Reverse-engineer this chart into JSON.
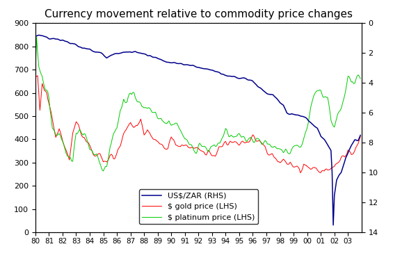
{
  "title": "Currency movement relative to commodity price changes",
  "title_fontsize": 11,
  "background_color": "#ffffff",
  "lhs_ylim": [
    0,
    900
  ],
  "lhs_yticks": [
    0,
    100,
    200,
    300,
    400,
    500,
    600,
    700,
    800,
    900
  ],
  "rhs_ylim": [
    14,
    0
  ],
  "rhs_yticks": [
    0,
    2,
    4,
    6,
    8,
    10,
    12,
    14
  ],
  "gold_color": "#ff0000",
  "platinum_color": "#00cc00",
  "zar_color": "#00008b",
  "legend_labels": [
    "US$/ZAR (RHS)",
    "$ gold price (LHS)",
    "$ platinum price (LHS)"
  ]
}
